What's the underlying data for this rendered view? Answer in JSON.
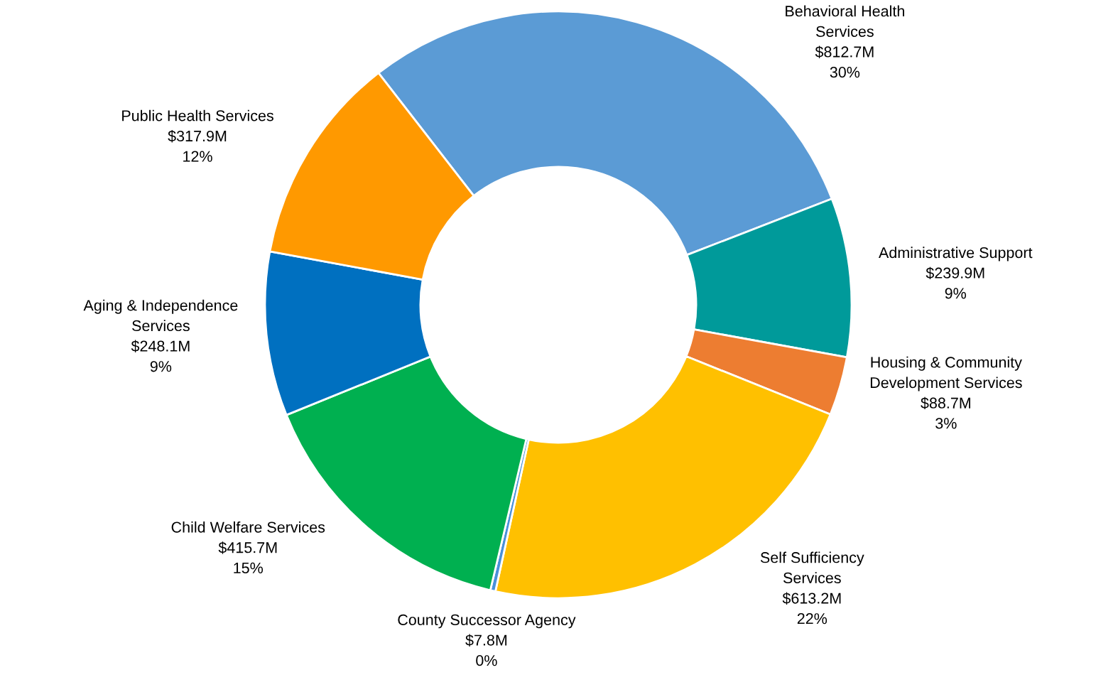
{
  "chart_data": {
    "type": "donut",
    "categories": [
      "Behavioral Health Services",
      "Administrative Support",
      "Housing & Community Development Services",
      "Self Sufficiency Services",
      "County Successor Agency",
      "Child Welfare Services",
      "Aging & Independence Services",
      "Public Health Services"
    ],
    "values": [
      812.7,
      239.9,
      88.7,
      613.2,
      7.8,
      415.7,
      248.1,
      317.9
    ],
    "colors": [
      "#5b9bd5",
      "#009a9a",
      "#ed7d31",
      "#ffc000",
      "#4a90d9",
      "#00b050",
      "#0070c0",
      "#ff9900"
    ],
    "value_labels": [
      "$812.7M",
      "$239.9M",
      "$88.7M",
      "$613.2M",
      "$7.8M",
      "$415.7M",
      "$248.1M",
      "$317.9M"
    ],
    "annotations": [
      "30%",
      "9%",
      "3%",
      "22%",
      "0%",
      "15%",
      "9%",
      "12%"
    ]
  }
}
